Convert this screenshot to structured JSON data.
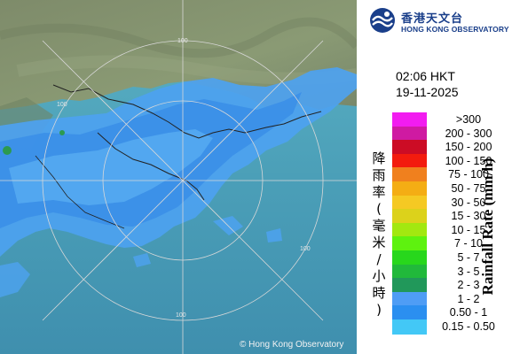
{
  "header": {
    "org_name_cn": "香港天文台",
    "org_name_en": "HONG KONG OBSERVATORY",
    "time": "02:06 HKT",
    "date": "19-11-2025"
  },
  "legend": {
    "title_cn": "降雨率(毫米/小時)",
    "title_en": "Rainfall Rate (mm/h)",
    "items": [
      {
        "label": ">300",
        "color": "#f21cf0"
      },
      {
        "label": "200 - 300",
        "color": "#cf1aa2"
      },
      {
        "label": "150 - 200",
        "color": "#cc0c25"
      },
      {
        "label": "100 - 150",
        "color": "#f31b0e"
      },
      {
        "label": "75 - 100",
        "color": "#f0801e"
      },
      {
        "label": "50 - 75",
        "color": "#f4ad14"
      },
      {
        "label": "30 - 50",
        "color": "#f5c923"
      },
      {
        "label": "15 - 30",
        "color": "#dcd21b"
      },
      {
        "label": "10 - 15",
        "color": "#a2e810"
      },
      {
        "label": "7 - 10",
        "color": "#5ef20f"
      },
      {
        "label": "5 - 7",
        "color": "#28d71c"
      },
      {
        "label": "3 - 5",
        "color": "#21b93b"
      },
      {
        "label": "2 - 3",
        "color": "#21985a"
      },
      {
        "label": "1 - 2",
        "color": "#4f9df5"
      },
      {
        "label": "0.50 - 1",
        "color": "#2b8ff0"
      },
      {
        "label": "0.15 - 0.50",
        "color": "#43c8f6"
      }
    ]
  },
  "map": {
    "range_ring_label": "100",
    "credit": "© Hong Kong Observatory"
  }
}
